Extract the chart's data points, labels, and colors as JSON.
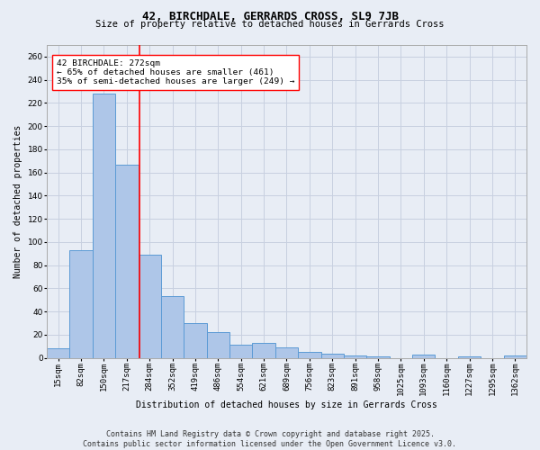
{
  "title1": "42, BIRCHDALE, GERRARDS CROSS, SL9 7JB",
  "title2": "Size of property relative to detached houses in Gerrards Cross",
  "xlabel": "Distribution of detached houses by size in Gerrards Cross",
  "ylabel": "Number of detached properties",
  "categories": [
    "15sqm",
    "82sqm",
    "150sqm",
    "217sqm",
    "284sqm",
    "352sqm",
    "419sqm",
    "486sqm",
    "554sqm",
    "621sqm",
    "689sqm",
    "756sqm",
    "823sqm",
    "891sqm",
    "958sqm",
    "1025sqm",
    "1093sqm",
    "1160sqm",
    "1227sqm",
    "1295sqm",
    "1362sqm"
  ],
  "values": [
    8,
    93,
    228,
    167,
    89,
    53,
    30,
    22,
    11,
    13,
    9,
    5,
    4,
    2,
    1,
    0,
    3,
    0,
    1,
    0,
    2
  ],
  "bar_color": "#aec6e8",
  "bar_edge_color": "#5b9bd5",
  "annotation_text": "42 BIRCHDALE: 272sqm\n← 65% of detached houses are smaller (461)\n35% of semi-detached houses are larger (249) →",
  "vline_color": "#ff0000",
  "vline_x": 3.55,
  "annotation_box_color": "#ffffff",
  "annotation_box_edge": "#ff0000",
  "grid_color": "#c8d0e0",
  "background_color": "#e8edf5",
  "footer": "Contains HM Land Registry data © Crown copyright and database right 2025.\nContains public sector information licensed under the Open Government Licence v3.0.",
  "ylim": [
    0,
    270
  ],
  "yticks": [
    0,
    20,
    40,
    60,
    80,
    100,
    120,
    140,
    160,
    180,
    200,
    220,
    240,
    260
  ],
  "title1_fontsize": 9,
  "title2_fontsize": 7.5,
  "xlabel_fontsize": 7,
  "ylabel_fontsize": 7,
  "tick_fontsize": 6.5,
  "annotation_fontsize": 6.8,
  "footer_fontsize": 6
}
